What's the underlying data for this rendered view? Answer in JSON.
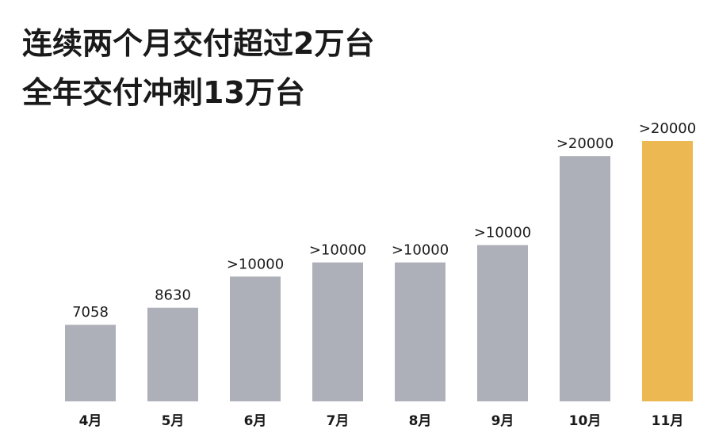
{
  "chart_data": {
    "type": "bar",
    "title": [
      "连续两个月交付超过2万台",
      "全年交付冲刺13万台"
    ],
    "categories": [
      "4月",
      "5月",
      "6月",
      "7月",
      "8月",
      "9月",
      "10月",
      "11月"
    ],
    "values": [
      7058,
      8630,
      11500,
      12800,
      12800,
      14400,
      22600,
      24000
    ],
    "value_labels": [
      "7058",
      "8630",
      ">10000",
      ">10000",
      ">10000",
      ">10000",
      ">20000",
      ">20000"
    ],
    "colors": [
      "#adb0b8",
      "#adb0b8",
      "#adb0b8",
      "#adb0b8",
      "#adb0b8",
      "#adb0b8",
      "#adb0b8",
      "#ecb852"
    ],
    "ylim": [
      0,
      24000
    ]
  }
}
